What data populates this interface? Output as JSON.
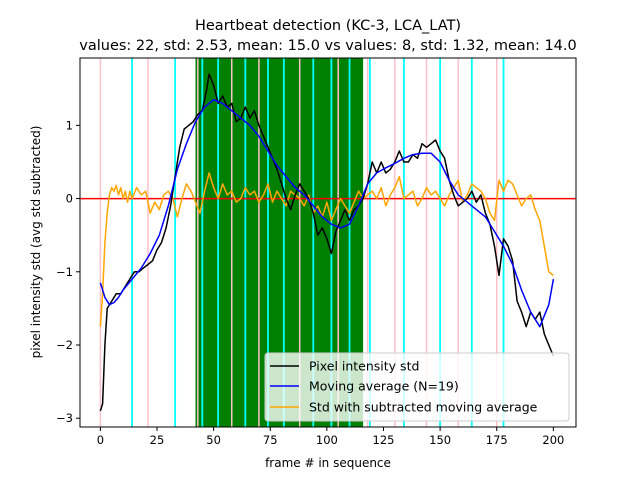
{
  "chart_data": {
    "type": "line",
    "title_line1": "Heartbeat detection (KC-3, LCA_LAT)",
    "title_line2": "values: 22, std: 2.53, mean: 15.0 vs values: 8, std: 1.32, mean: 14.0",
    "xlabel": "frame # in sequence",
    "ylabel": "pixel intensity std (avg std subtracted)",
    "xlim": [
      -9,
      210
    ],
    "ylim": [
      -3.12,
      1.92
    ],
    "xticks": [
      0,
      25,
      50,
      75,
      100,
      125,
      150,
      175,
      200
    ],
    "yticks": [
      -3,
      -2,
      -1,
      0,
      1
    ],
    "zero_line": {
      "y": 0,
      "color": "#ff0000"
    },
    "green_region": {
      "x0": 42,
      "x1": 116,
      "color": "#008000"
    },
    "pink_lines": {
      "color": "#ffc0cb",
      "x": [
        0,
        21,
        43,
        58,
        70,
        88,
        105,
        118,
        130,
        144,
        158,
        175
      ]
    },
    "cyan_lines": {
      "color": "#00ffff",
      "x": [
        14,
        33,
        45,
        52,
        64,
        74,
        81,
        94,
        102,
        110,
        119,
        134,
        150,
        164,
        178
      ]
    },
    "series": [
      {
        "name": "Pixel intensity std",
        "color": "#000000",
        "x": [
          0,
          1,
          2,
          3,
          5,
          7,
          9,
          11,
          13,
          15,
          17,
          19,
          21,
          23,
          25,
          27,
          29,
          31,
          33,
          35,
          37,
          39,
          41,
          43,
          45,
          47,
          48,
          50,
          52,
          54,
          56,
          58,
          60,
          62,
          64,
          66,
          68,
          70,
          72,
          74,
          76,
          78,
          80,
          82,
          84,
          86,
          88,
          90,
          92,
          94,
          96,
          98,
          100,
          102,
          104,
          106,
          108,
          110,
          112,
          114,
          116,
          118,
          120,
          122,
          124,
          126,
          128,
          130,
          132,
          134,
          136,
          138,
          140,
          142,
          144,
          146,
          148,
          150,
          152,
          154,
          156,
          158,
          160,
          162,
          164,
          166,
          168,
          170,
          172,
          174,
          176,
          178,
          180,
          182,
          184,
          186,
          188,
          190,
          192,
          194,
          196,
          198,
          200
        ],
        "y": [
          -2.9,
          -2.8,
          -2.0,
          -1.5,
          -1.4,
          -1.3,
          -1.3,
          -1.2,
          -1.1,
          -1.0,
          -1.0,
          -0.95,
          -0.9,
          -0.85,
          -0.7,
          -0.6,
          -0.4,
          -0.1,
          0.3,
          0.7,
          0.95,
          1.0,
          1.05,
          1.15,
          1.2,
          1.5,
          1.7,
          1.55,
          1.3,
          1.4,
          1.25,
          1.3,
          1.05,
          1.1,
          1.25,
          1.1,
          1.2,
          1.0,
          0.85,
          0.7,
          0.55,
          0.4,
          0.2,
          0.0,
          -0.15,
          0.05,
          0.2,
          0.1,
          0.0,
          -0.2,
          -0.5,
          -0.4,
          -0.55,
          -0.75,
          -0.45,
          -0.3,
          -0.15,
          -0.3,
          -0.15,
          -0.1,
          0.0,
          0.2,
          0.5,
          0.35,
          0.5,
          0.35,
          0.4,
          0.5,
          0.65,
          0.5,
          0.5,
          0.6,
          0.55,
          0.75,
          0.7,
          0.75,
          0.8,
          0.65,
          0.55,
          0.25,
          0.05,
          -0.1,
          -0.05,
          0.0,
          0.1,
          -0.05,
          0.05,
          -0.2,
          -0.35,
          -0.65,
          -1.05,
          -0.55,
          -0.65,
          -0.85,
          -1.4,
          -1.55,
          -1.75,
          -1.55,
          -1.65,
          -1.55,
          -1.85,
          -2.0,
          -2.15
        ]
      },
      {
        "name": "Moving average (N=19)",
        "color": "#0000ff",
        "x": [
          0,
          2,
          4,
          6,
          8,
          10,
          14,
          18,
          22,
          26,
          30,
          34,
          38,
          42,
          46,
          50,
          54,
          58,
          62,
          66,
          70,
          74,
          78,
          82,
          86,
          90,
          94,
          98,
          102,
          106,
          110,
          114,
          118,
          122,
          126,
          130,
          134,
          138,
          142,
          146,
          150,
          154,
          158,
          162,
          166,
          170,
          174,
          178,
          182,
          186,
          190,
          194,
          198,
          200
        ],
        "y": [
          -1.15,
          -1.35,
          -1.45,
          -1.42,
          -1.35,
          -1.25,
          -1.1,
          -0.95,
          -0.75,
          -0.5,
          -0.1,
          0.4,
          0.75,
          1.05,
          1.25,
          1.35,
          1.3,
          1.2,
          1.1,
          1.0,
          0.85,
          0.65,
          0.45,
          0.3,
          0.15,
          0.05,
          -0.1,
          -0.25,
          -0.35,
          -0.4,
          -0.35,
          -0.1,
          0.2,
          0.35,
          0.42,
          0.48,
          0.55,
          0.6,
          0.62,
          0.62,
          0.5,
          0.25,
          0.05,
          -0.05,
          -0.15,
          -0.25,
          -0.45,
          -0.65,
          -0.9,
          -1.25,
          -1.55,
          -1.75,
          -1.45,
          -1.1
        ]
      },
      {
        "name": "Std with subtracted moving average",
        "color": "#ffa500",
        "x": [
          0,
          1,
          2,
          3,
          4,
          5,
          6,
          7,
          8,
          9,
          10,
          11,
          12,
          13,
          14,
          16,
          18,
          20,
          22,
          24,
          26,
          28,
          30,
          32,
          34,
          36,
          38,
          40,
          42,
          44,
          46,
          48,
          50,
          52,
          54,
          56,
          58,
          60,
          62,
          64,
          66,
          68,
          70,
          72,
          74,
          76,
          78,
          80,
          82,
          84,
          86,
          88,
          90,
          92,
          94,
          96,
          98,
          100,
          102,
          104,
          106,
          108,
          110,
          112,
          114,
          116,
          118,
          120,
          122,
          124,
          126,
          128,
          130,
          132,
          134,
          136,
          138,
          140,
          142,
          144,
          146,
          148,
          150,
          152,
          154,
          156,
          158,
          160,
          162,
          164,
          166,
          168,
          170,
          172,
          174,
          176,
          178,
          180,
          182,
          184,
          186,
          188,
          190,
          192,
          194,
          196,
          198,
          200
        ],
        "y": [
          -1.75,
          -1.3,
          -0.6,
          -0.2,
          0.05,
          0.15,
          0.1,
          0.18,
          0.05,
          0.15,
          0.0,
          0.1,
          -0.05,
          0.1,
          0.0,
          0.15,
          0.05,
          0.1,
          -0.2,
          -0.05,
          -0.15,
          0.05,
          0.1,
          0.0,
          -0.25,
          0.0,
          0.2,
          0.1,
          -0.05,
          -0.2,
          0.1,
          0.35,
          0.15,
          0.0,
          0.2,
          0.05,
          0.1,
          -0.05,
          0.0,
          0.15,
          0.05,
          0.1,
          -0.05,
          0.05,
          0.2,
          -0.05,
          0.1,
          0.0,
          -0.1,
          0.1,
          0.05,
          0.0,
          -0.1,
          0.05,
          -0.2,
          -0.1,
          -0.25,
          -0.05,
          -0.3,
          -0.15,
          0.0,
          -0.1,
          -0.2,
          -0.05,
          0.1,
          0.0,
          0.05,
          0.1,
          0.0,
          0.15,
          -0.1,
          0.05,
          0.15,
          0.3,
          0.0,
          0.05,
          0.1,
          -0.1,
          0.0,
          0.15,
          0.05,
          0.1,
          0.0,
          -0.1,
          0.05,
          0.15,
          0.25,
          -0.05,
          0.05,
          0.2,
          0.15,
          0.1,
          0.0,
          -0.2,
          -0.3,
          0.25,
          0.1,
          0.25,
          0.2,
          0.05,
          -0.1,
          0.0,
          0.05,
          -0.15,
          -0.3,
          -0.65,
          -1.0,
          -1.05
        ]
      }
    ],
    "legend_location": "lower right"
  }
}
